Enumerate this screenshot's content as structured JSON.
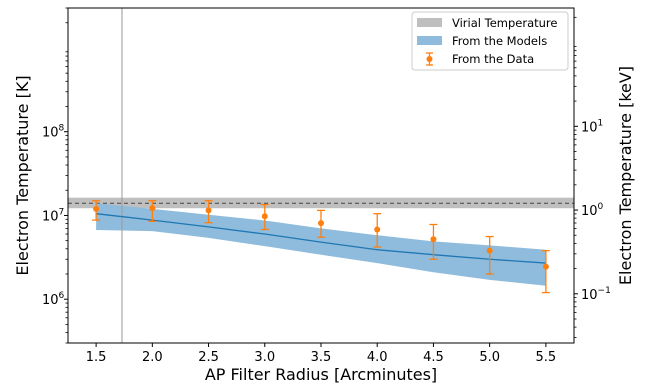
{
  "chart_data": {
    "type": "line",
    "xlabel": "AP Filter Radius [Arcminutes]",
    "ylabel": "Electron Temperature [K]",
    "y2label": "Electron Temperature [keV]",
    "xlim": [
      1.25,
      5.75
    ],
    "ylim": [
      300000,
      3000000000
    ],
    "yscale": "log",
    "x_ticks": [
      "1.5",
      "2.0",
      "2.5",
      "3.0",
      "3.5",
      "4.0",
      "4.5",
      "5.0",
      "5.5"
    ],
    "y_ticks": [
      {
        "value": 1000000,
        "label": "10",
        "exp": "6"
      },
      {
        "value": 10000000,
        "label": "10",
        "exp": "7"
      },
      {
        "value": 100000000,
        "label": "10",
        "exp": "8"
      }
    ],
    "y2_ticks": [
      {
        "value": 0.1,
        "label": "10",
        "exp": "−1"
      },
      {
        "value": 1,
        "label": "10",
        "exp": "0"
      },
      {
        "value": 10,
        "label": "10",
        "exp": "1"
      }
    ],
    "kev_to_k": 11604518,
    "vertical_line_x": 1.73,
    "virial_band": {
      "name": "Virial Temperature",
      "low": 12200000,
      "high": 16300000,
      "center": 14000000,
      "color": "#bfbfbf"
    },
    "models": {
      "name": "From the Models",
      "color": "#1f77b4",
      "band_color": "#8fbcdc",
      "x": [
        1.5,
        2.0,
        2.5,
        3.0,
        3.5,
        4.0,
        4.5,
        5.0,
        5.5
      ],
      "median": [
        10500000,
        8800000,
        7300000,
        6000000,
        4800000,
        3900000,
        3400000,
        3000000,
        2700000
      ],
      "lower": [
        6700000,
        6500000,
        5400000,
        4300000,
        3400000,
        2700000,
        2100000,
        1700000,
        1450000
      ],
      "upper": [
        14000000,
        12000000,
        10200000,
        8700000,
        7000000,
        5800000,
        4900000,
        4400000,
        3900000
      ]
    },
    "data": {
      "name": "From the Data",
      "color": "#ff7f0e",
      "x": [
        1.5,
        2.0,
        2.5,
        3.0,
        3.5,
        4.0,
        4.5,
        5.0,
        5.5
      ],
      "y": [
        12000000,
        12200000,
        11500000,
        9800000,
        8100000,
        6800000,
        5200000,
        3800000,
        2450000
      ],
      "yerr_low": [
        8800000,
        8500000,
        8200000,
        6800000,
        5500000,
        4200000,
        3000000,
        2000000,
        1200000
      ],
      "yerr_high": [
        15000000,
        15000000,
        15000000,
        13500000,
        11500000,
        10500000,
        7800000,
        5600000,
        3800000
      ]
    },
    "legend": {
      "placement": "upper right"
    }
  }
}
